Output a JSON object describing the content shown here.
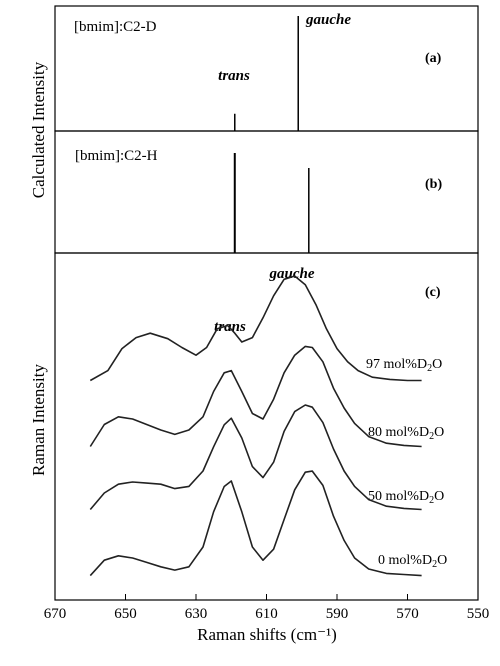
{
  "chart_data": [
    {
      "panel": "(a)",
      "type": "stick",
      "ylabel": "Calculated Intensity",
      "title": "[bmim]:C2-D",
      "xlim": [
        670,
        550
      ],
      "x_reversed": true,
      "sticks": [
        {
          "x": 619,
          "intensity": 0.15,
          "label": "trans"
        },
        {
          "x": 601,
          "intensity": 1.0,
          "label": "gauche"
        }
      ]
    },
    {
      "panel": "(b)",
      "type": "stick",
      "ylabel": "Calculated Intensity",
      "title": "[bmim]:C2-H",
      "xlim": [
        670,
        550
      ],
      "x_reversed": true,
      "sticks": [
        {
          "x": 619,
          "intensity": 1.0
        },
        {
          "x": 598,
          "intensity": 0.85
        }
      ]
    },
    {
      "panel": "(c)",
      "type": "line",
      "ylabel": "Raman Intensity",
      "xlabel": "Raman shifts (cm⁻¹)",
      "xlim": [
        670,
        550
      ],
      "x_reversed": true,
      "xticks": [
        670,
        650,
        630,
        610,
        590,
        570,
        550
      ],
      "annotations": [
        {
          "text": "trans",
          "x": 620
        },
        {
          "text": "gauche",
          "x": 601
        }
      ],
      "series": [
        {
          "name": "97 mol%D2O",
          "label_main": "97 mol%D",
          "label_sub": "2",
          "label_tail": "O",
          "x": [
            660,
            655,
            651,
            647,
            643,
            638,
            634,
            630,
            627,
            624,
            621,
            619,
            617,
            614,
            611,
            608,
            605,
            602,
            599,
            596,
            593,
            590,
            587,
            584,
            580,
            575,
            570,
            566
          ],
          "y": [
            0.05,
            0.14,
            0.34,
            0.44,
            0.48,
            0.43,
            0.35,
            0.28,
            0.35,
            0.52,
            0.55,
            0.48,
            0.4,
            0.44,
            0.62,
            0.82,
            0.97,
            1.0,
            0.92,
            0.74,
            0.52,
            0.34,
            0.22,
            0.14,
            0.08,
            0.06,
            0.05,
            0.05
          ]
        },
        {
          "name": "80 mol%D2O",
          "label_main": "80 mol%D",
          "label_sub": "2",
          "label_tail": "O",
          "x": [
            660,
            656,
            652,
            648,
            644,
            640,
            636,
            632,
            628,
            625,
            622,
            620,
            617,
            614,
            611,
            608,
            605,
            602,
            599,
            597,
            594,
            591,
            588,
            585,
            581,
            576,
            571,
            566
          ],
          "y": [
            0.05,
            0.25,
            0.32,
            0.3,
            0.25,
            0.2,
            0.16,
            0.2,
            0.32,
            0.55,
            0.72,
            0.74,
            0.55,
            0.35,
            0.3,
            0.48,
            0.72,
            0.88,
            0.96,
            0.95,
            0.82,
            0.58,
            0.4,
            0.26,
            0.14,
            0.08,
            0.06,
            0.05
          ]
        },
        {
          "name": "50 mol%D2O",
          "label_main": "50 mol%D",
          "label_sub": "2",
          "label_tail": "O",
          "x": [
            660,
            656,
            652,
            648,
            644,
            640,
            636,
            632,
            628,
            625,
            622,
            620,
            617,
            614,
            611,
            608,
            605,
            602,
            599,
            597,
            594,
            591,
            588,
            585,
            581,
            576,
            571,
            566
          ],
          "y": [
            0.05,
            0.2,
            0.28,
            0.3,
            0.29,
            0.28,
            0.24,
            0.26,
            0.4,
            0.62,
            0.82,
            0.88,
            0.7,
            0.44,
            0.34,
            0.48,
            0.76,
            0.94,
            1.0,
            0.98,
            0.84,
            0.6,
            0.4,
            0.26,
            0.14,
            0.08,
            0.06,
            0.05
          ]
        },
        {
          "name": "0 mol%D2O",
          "label_main": "0 mol%D",
          "label_sub": "2",
          "label_tail": "O",
          "x": [
            660,
            656,
            652,
            648,
            644,
            640,
            636,
            632,
            628,
            625,
            622,
            620,
            617,
            614,
            611,
            608,
            605,
            602,
            599,
            597,
            594,
            591,
            588,
            585,
            581,
            576,
            571,
            566
          ],
          "y": [
            0.04,
            0.18,
            0.22,
            0.2,
            0.16,
            0.12,
            0.09,
            0.12,
            0.3,
            0.62,
            0.85,
            0.9,
            0.62,
            0.3,
            0.18,
            0.28,
            0.55,
            0.82,
            0.98,
            0.99,
            0.86,
            0.58,
            0.36,
            0.2,
            0.1,
            0.06,
            0.05,
            0.04
          ]
        }
      ]
    }
  ]
}
